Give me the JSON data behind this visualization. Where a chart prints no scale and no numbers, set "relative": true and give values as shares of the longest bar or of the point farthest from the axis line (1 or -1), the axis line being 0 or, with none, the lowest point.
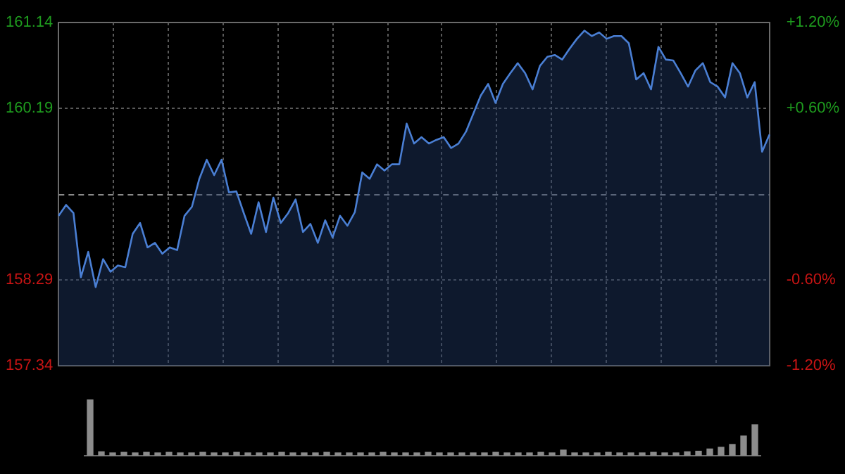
{
  "chart_data": [
    {
      "type": "area",
      "categories": [
        null,
        null,
        null,
        null,
        null,
        null,
        null,
        null,
        null,
        null,
        null,
        null,
        null,
        null,
        null,
        null,
        null,
        null,
        null,
        null,
        null,
        null,
        null,
        null,
        null,
        null,
        null,
        null,
        null,
        null,
        null,
        null,
        null,
        null,
        null,
        null,
        null,
        null,
        null,
        null,
        null,
        null,
        null,
        null,
        null,
        null,
        null,
        null,
        null,
        null,
        null,
        null,
        null,
        null,
        null,
        null,
        null,
        null,
        null,
        null,
        null,
        null,
        null,
        null,
        null,
        null,
        null,
        null,
        null,
        null,
        null,
        null,
        null,
        null,
        null,
        null,
        null,
        null,
        null,
        null,
        null,
        null,
        null,
        null,
        null,
        null,
        null,
        null,
        null,
        null,
        null,
        null,
        null,
        null,
        null,
        null,
        null
      ],
      "series": [
        {
          "color": "#4a7fd4",
          "values": [
            159.0,
            159.12,
            159.03,
            158.32,
            158.6,
            158.21,
            158.52,
            158.38,
            158.45,
            158.43,
            158.8,
            158.92,
            158.65,
            158.7,
            158.58,
            158.65,
            158.62,
            159.0,
            159.1,
            159.41,
            159.62,
            159.45,
            159.62,
            159.26,
            159.27,
            159.03,
            158.8,
            159.15,
            158.82,
            159.2,
            158.92,
            159.03,
            159.18,
            158.82,
            158.91,
            158.7,
            158.95,
            158.76,
            159.0,
            158.89,
            159.04,
            159.48,
            159.41,
            159.57,
            159.5,
            159.57,
            159.57,
            160.02,
            159.8,
            159.87,
            159.8,
            159.84,
            159.87,
            159.75,
            159.8,
            159.93,
            160.13,
            160.33,
            160.46,
            160.25,
            160.46,
            160.58,
            160.69,
            160.58,
            160.4,
            160.66,
            160.76,
            160.78,
            160.73,
            160.85,
            160.96,
            161.05,
            160.99,
            161.03,
            160.96,
            160.99,
            160.99,
            160.91,
            160.51,
            160.58,
            160.4,
            160.87,
            160.73,
            160.72,
            160.58,
            160.43,
            160.61,
            160.69,
            160.48,
            160.43,
            160.31,
            160.69,
            160.58,
            160.31,
            160.48,
            159.71,
            159.9
          ]
        }
      ],
      "ylim": [
        157.34,
        161.14
      ],
      "yticks": [
        {
          "value": 157.34,
          "label": "157.34"
        },
        {
          "value": 158.29,
          "label": "158.29"
        },
        {
          "value": 160.19,
          "label": "160.19"
        },
        {
          "value": 161.14,
          "label": "161.14"
        }
      ],
      "y2lim": [
        -1.2,
        1.2
      ],
      "y2ticks": [
        {
          "value": -1.2,
          "label": "-1.20%"
        },
        {
          "value": -0.6,
          "label": "-0.60%"
        },
        {
          "value": 0.6,
          "label": "+0.60%"
        },
        {
          "value": 1.2,
          "label": "+1.20%"
        }
      ],
      "ref_lines": [
        {
          "axis": "y",
          "value": 159.24,
          "label": null,
          "color": "#8a8a8a",
          "line_style": "dashed"
        }
      ],
      "grid": true,
      "tick_labels": "y",
      "legend": false,
      "marker": "none"
    },
    {
      "type": "bar",
      "relative": true,
      "categories": [
        null,
        null,
        null,
        null,
        null,
        null,
        null,
        null,
        null,
        null,
        null,
        null,
        null,
        null,
        null,
        null,
        null,
        null,
        null,
        null,
        null,
        null,
        null,
        null,
        null,
        null,
        null,
        null,
        null,
        null,
        null,
        null,
        null,
        null,
        null,
        null,
        null,
        null,
        null,
        null,
        null,
        null,
        null,
        null,
        null,
        null,
        null,
        null,
        null,
        null,
        null,
        null,
        null,
        null,
        null,
        null,
        null,
        null,
        null,
        null
      ],
      "values": [
        1,
        0.07,
        0.05,
        0.06,
        0.05,
        0.06,
        0.05,
        0.06,
        0.05,
        0.05,
        0.06,
        0.05,
        0.05,
        0.06,
        0.05,
        0.05,
        0.05,
        0.06,
        0.05,
        0.05,
        0.05,
        0.06,
        0.05,
        0.05,
        0.05,
        0.05,
        0.06,
        0.05,
        0.05,
        0.05,
        0.06,
        0.05,
        0.05,
        0.05,
        0.05,
        0.05,
        0.06,
        0.05,
        0.05,
        0.05,
        0.06,
        0.05,
        0.1,
        0.05,
        0.05,
        0.05,
        0.06,
        0.05,
        0.05,
        0.05,
        0.06,
        0.05,
        0.05,
        0.07,
        0.08,
        0.12,
        0.15,
        0.2,
        0.35,
        0.55
      ],
      "color": "#8c8c8c",
      "tick_labels": false,
      "legend": false
    }
  ]
}
